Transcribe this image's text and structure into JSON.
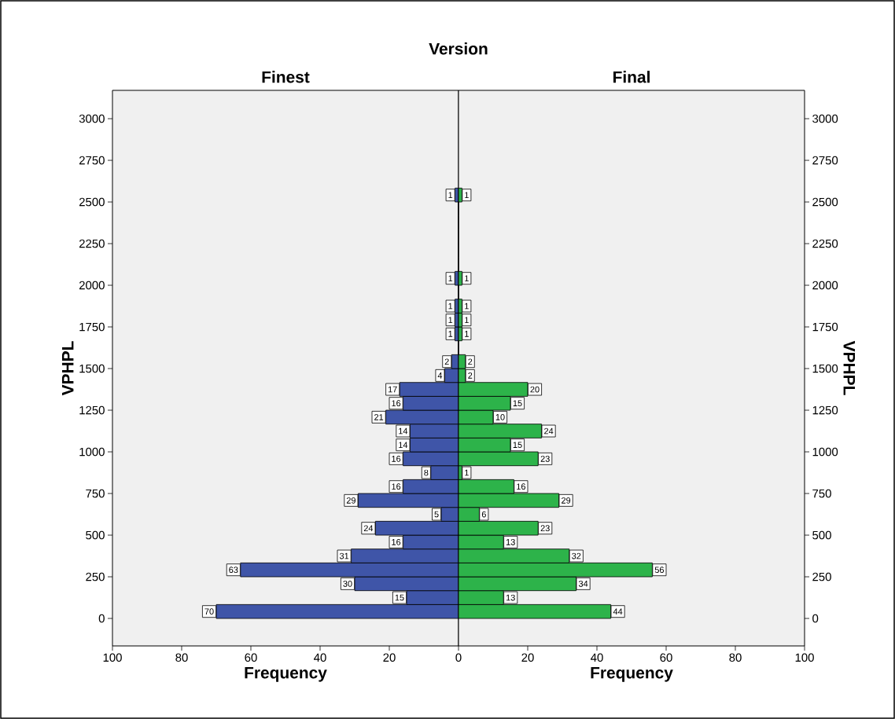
{
  "chart_data": [
    {
      "type": "histogram",
      "orientation": "horizontal",
      "title": "Version",
      "subtitle": "Finest",
      "xlabel": "Frequency",
      "ylabel": "VPHPL",
      "color": "#3f55a8",
      "bins": [
        0,
        83.3,
        166.7,
        250,
        333.3,
        416.7,
        500,
        583.3,
        666.7,
        750,
        833.3,
        916.7,
        1000,
        1083.3,
        1166.7,
        1250,
        1333.3,
        1416.7,
        1500,
        1583.3,
        1666.7,
        1750,
        1833.3,
        1916.7,
        2000,
        2083.3,
        2166.7,
        2250,
        2333.3,
        2416.7,
        2500,
        2583.3
      ],
      "values": [
        70,
        15,
        30,
        63,
        31,
        16,
        24,
        5,
        29,
        16,
        8,
        16,
        14,
        14,
        21,
        16,
        17,
        4,
        2,
        0,
        1,
        1,
        1,
        0,
        1,
        0,
        0,
        0,
        0,
        0,
        1
      ],
      "value_labels": [
        "70",
        "15",
        "30",
        "63",
        "31",
        "16",
        "24",
        "5",
        "29",
        "16",
        "8",
        "16",
        "14",
        "14",
        "21",
        "16",
        "17",
        "4",
        "2",
        null,
        "1",
        "1",
        "1",
        null,
        "1",
        null,
        null,
        null,
        null,
        null,
        "1"
      ],
      "xlim": [
        100,
        0
      ],
      "xticks": [
        100,
        80,
        60,
        40,
        20
      ],
      "ylim": [
        -165,
        3170
      ],
      "yticks": [
        0,
        250,
        500,
        750,
        1000,
        1250,
        1500,
        1750,
        2000,
        2250,
        2500,
        2750,
        3000
      ]
    },
    {
      "type": "histogram",
      "orientation": "horizontal",
      "subtitle": "Final",
      "xlabel": "Frequency",
      "ylabel": "VPHPL",
      "color": "#2db34a",
      "bins": [
        0,
        83.3,
        166.7,
        250,
        333.3,
        416.7,
        500,
        583.3,
        666.7,
        750,
        833.3,
        916.7,
        1000,
        1083.3,
        1166.7,
        1250,
        1333.3,
        1416.7,
        1500,
        1583.3,
        1666.7,
        1750,
        1833.3,
        1916.7,
        2000,
        2083.3,
        2166.7,
        2250,
        2333.3,
        2416.7,
        2500,
        2583.3
      ],
      "values": [
        44,
        13,
        34,
        56,
        32,
        13,
        23,
        6,
        29,
        16,
        1,
        23,
        15,
        24,
        10,
        15,
        20,
        2,
        2,
        0,
        1,
        1,
        1,
        0,
        1,
        0,
        0,
        0,
        0,
        0,
        1
      ],
      "value_labels": [
        "44",
        "13",
        "34",
        "56",
        "32",
        "13",
        "23",
        "6",
        "29",
        "16",
        "1",
        "23",
        "15",
        "24",
        "10",
        "15",
        "20",
        "2",
        "2",
        null,
        "1",
        "1",
        "1",
        null,
        "1",
        null,
        null,
        null,
        null,
        null,
        "1"
      ],
      "xlim": [
        0,
        100
      ],
      "xticks": [
        0,
        20,
        40,
        60,
        80,
        100
      ],
      "ylim": [
        -165,
        3170
      ],
      "yticks": [
        0,
        250,
        500,
        750,
        1000,
        1250,
        1500,
        1750,
        2000,
        2250,
        2500,
        2750,
        3000
      ]
    }
  ]
}
